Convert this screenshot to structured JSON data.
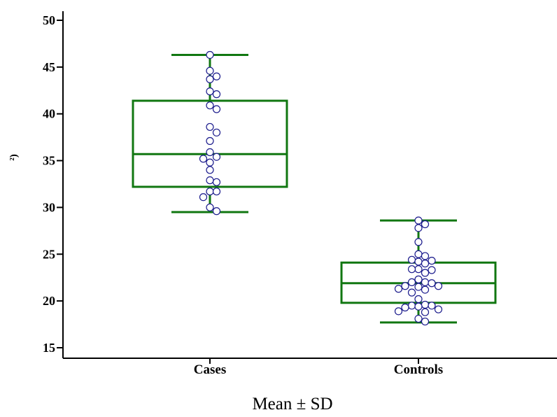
{
  "chart_data": {
    "type": "box",
    "title": "",
    "xlabel": "Mean ± SD",
    "ylabel": "²)",
    "ylim": [
      14,
      51
    ],
    "yticks": [
      15,
      20,
      25,
      30,
      35,
      40,
      45,
      50
    ],
    "grid": false,
    "colors": {
      "box": "#117711",
      "point_fill": "#ffffff",
      "point_stroke": "#1a1a8c",
      "axis": "#000000"
    },
    "categories": [
      "Cases",
      "Controls"
    ],
    "boxes": [
      {
        "category": "Cases",
        "whisker_low": 29.5,
        "q1": 32.2,
        "median": 35.7,
        "q3": 41.4,
        "whisker_high": 46.3,
        "points": [
          46.3,
          44.6,
          44.0,
          43.7,
          42.4,
          42.1,
          40.9,
          40.5,
          38.6,
          38.0,
          37.1,
          35.9,
          35.4,
          35.2,
          34.8,
          34.0,
          32.9,
          32.7,
          31.7,
          31.7,
          31.1,
          30.0,
          29.6
        ]
      },
      {
        "category": "Controls",
        "whisker_low": 17.7,
        "q1": 19.8,
        "median": 21.9,
        "q3": 24.1,
        "whisker_high": 28.6,
        "points": [
          28.6,
          28.2,
          27.8,
          26.3,
          25.0,
          24.8,
          24.4,
          24.3,
          24.2,
          24.0,
          23.4,
          23.4,
          23.3,
          23.0,
          22.3,
          22.0,
          22.0,
          21.9,
          21.6,
          21.6,
          21.5,
          21.3,
          21.2,
          20.9,
          20.2,
          19.6,
          19.5,
          19.5,
          19.4,
          19.3,
          19.1,
          18.9,
          18.8,
          18.1,
          17.8
        ]
      }
    ]
  }
}
